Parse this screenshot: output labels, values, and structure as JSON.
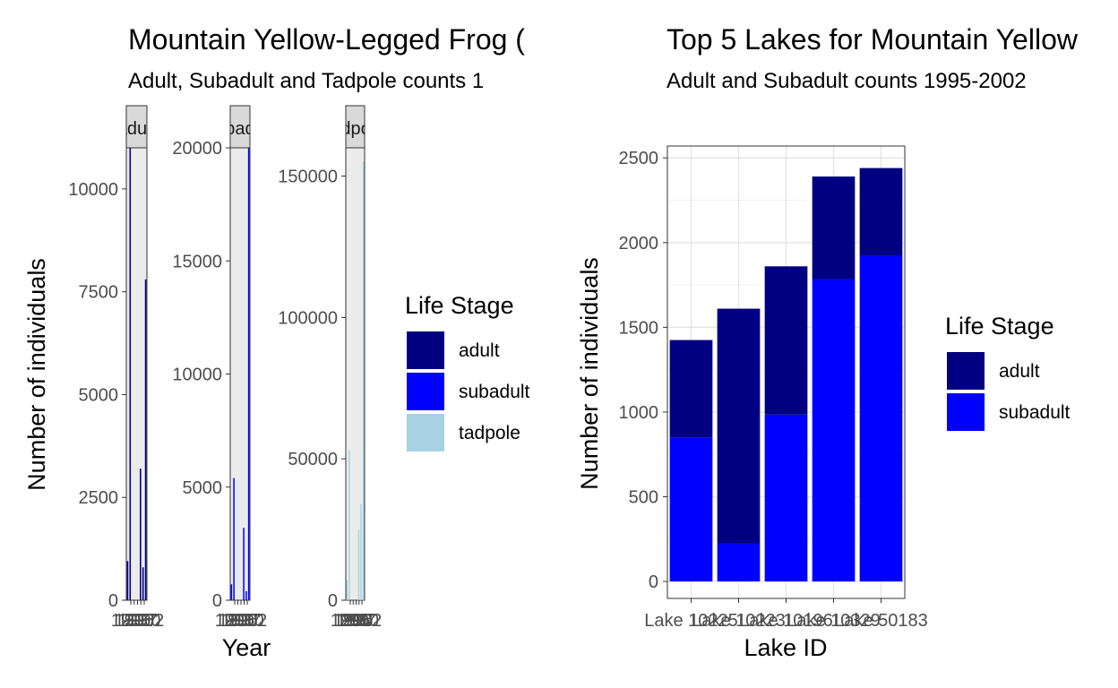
{
  "chart_data": [
    {
      "type": "bar",
      "title": "Mountain Yellow-Legged Frog (",
      "subtitle": "Adult, Subadult and Tadpole counts 1",
      "xlabel": "Year",
      "ylabel": "Number of individuals",
      "facets": [
        {
          "strip_label": "adult",
          "ylim": [
            0,
            11000
          ],
          "yticks": [
            0,
            2500,
            5000,
            7500,
            10000
          ],
          "x": [
            "1995",
            "1996",
            "1997",
            "1998",
            "1999",
            "2000",
            "2001",
            "2002"
          ],
          "values": [
            950,
            11000,
            0,
            0,
            0,
            3200,
            800,
            7800
          ],
          "color": "#000080"
        },
        {
          "strip_label": "subadult",
          "ylim": [
            0,
            20000
          ],
          "yticks": [
            0,
            5000,
            10000,
            15000,
            20000
          ],
          "x": [
            "1995",
            "1996",
            "1997",
            "1998",
            "1999",
            "2000",
            "2001",
            "2002"
          ],
          "values": [
            700,
            5400,
            0,
            0,
            0,
            3200,
            400,
            20000
          ],
          "color": "#0000ff"
        },
        {
          "strip_label": "tadpole",
          "ylim": [
            0,
            160000
          ],
          "yticks": [
            0,
            50000,
            100000,
            150000
          ],
          "x": [
            "1995",
            "1996",
            "1997",
            "1998",
            "1999",
            "2000",
            "2001",
            "2002"
          ],
          "values": [
            7000,
            53000,
            0,
            0,
            0,
            25000,
            34000,
            155000
          ],
          "color": "#a6d2e2"
        }
      ],
      "x_tick_labels": [
        "1995",
        "1996",
        "1997",
        "2000",
        "2002"
      ],
      "legend": {
        "title": "Life Stage",
        "position": "right",
        "entries": [
          {
            "label": "adult",
            "color": "#000080"
          },
          {
            "label": "subadult",
            "color": "#0000ff"
          },
          {
            "label": "tadpole",
            "color": "#a6d2e2"
          }
        ]
      }
    },
    {
      "type": "bar",
      "stacked": true,
      "title": "Top 5 Lakes for Mountain Yellow",
      "subtitle": "Adult and Subadult counts 1995-2002",
      "xlabel": "Lake ID",
      "ylabel": "Number of individuals",
      "ylim": [
        -100,
        2570
      ],
      "yticks": [
        0,
        500,
        1000,
        1500,
        2000,
        2500
      ],
      "categories": [
        "Lake 10225",
        "Lake 10223",
        "Lake 10196",
        "Lake 10329",
        "Lake 50183"
      ],
      "series": [
        {
          "name": "subadult",
          "color": "#0000ff",
          "values": [
            850,
            225,
            985,
            1785,
            1925
          ]
        },
        {
          "name": "adult",
          "color": "#000080",
          "values": [
            575,
            1385,
            875,
            605,
            515
          ]
        }
      ],
      "grid": true,
      "legend": {
        "title": "Life Stage",
        "position": "right",
        "entries": [
          {
            "label": "adult",
            "color": "#000080"
          },
          {
            "label": "subadult",
            "color": "#0000ff"
          }
        ]
      }
    }
  ]
}
